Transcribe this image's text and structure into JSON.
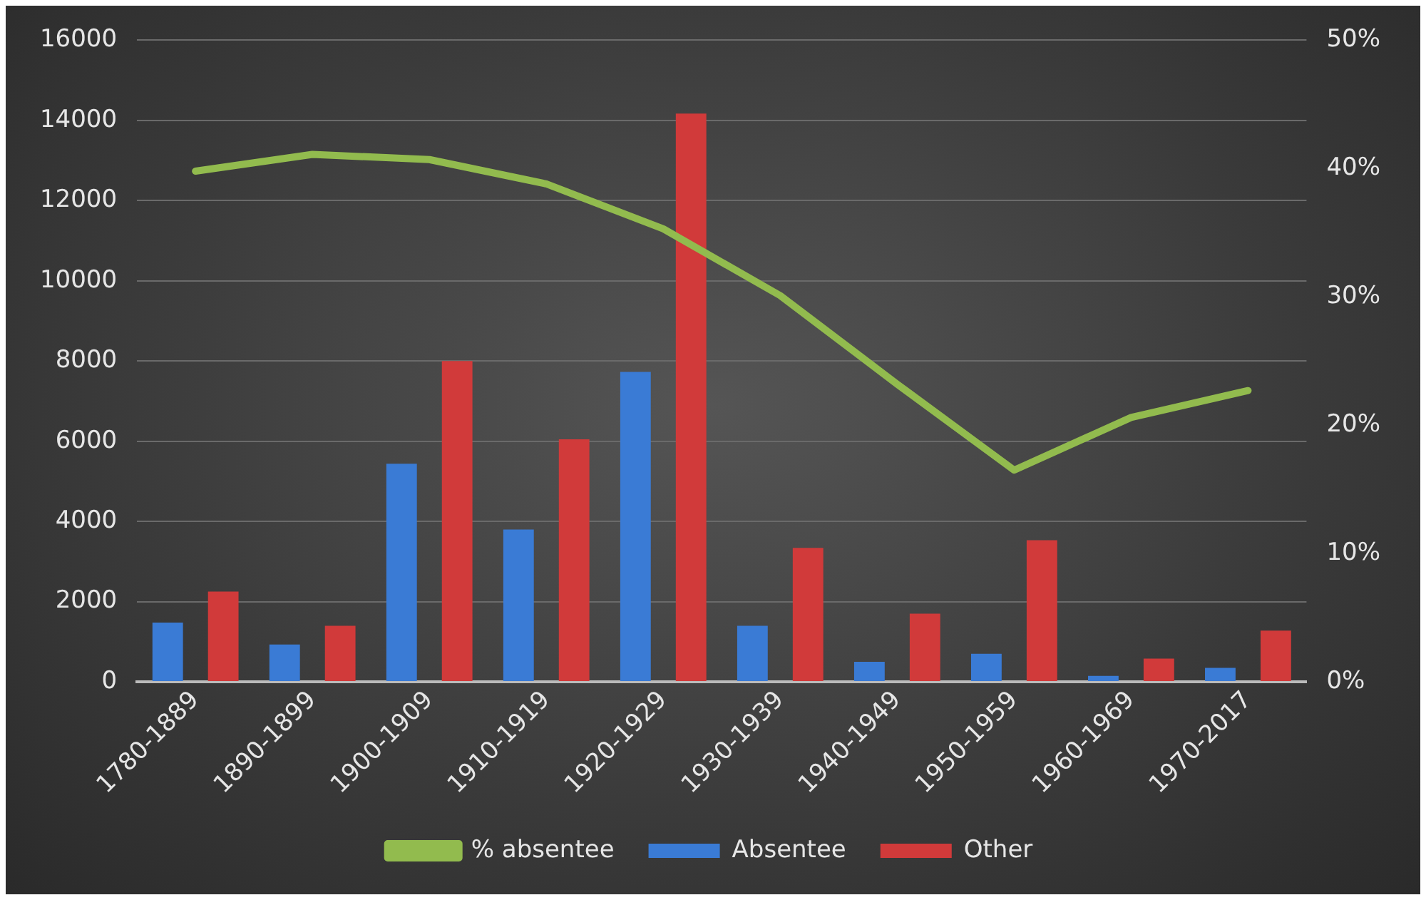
{
  "chart_data": {
    "type": "bar",
    "categories": [
      "1780-1889",
      "1890-1899",
      "1900-1909",
      "1910-1919",
      "1920-1929",
      "1930-1939",
      "1940-1949",
      "1950-1959",
      "1960-1969",
      "1970-2017"
    ],
    "series": [
      {
        "name": "Absentee",
        "color": "#3a7bd5",
        "values": [
          1480,
          930,
          5440,
          3800,
          7730,
          1400,
          500,
          700,
          150,
          350
        ]
      },
      {
        "name": "Other",
        "color": "#d13a3a",
        "values": [
          2250,
          1400,
          8000,
          6050,
          14170,
          3340,
          1700,
          3530,
          580,
          1280
        ]
      },
      {
        "name": "% absentee",
        "type": "line",
        "axis": "y2",
        "color": "#92bb4e",
        "values": [
          39.8,
          41.1,
          40.7,
          38.8,
          35.3,
          30.1,
          23.2,
          16.5,
          20.6,
          22.7
        ]
      }
    ],
    "ylim": [
      0,
      16000
    ],
    "yticks": [
      0,
      2000,
      4000,
      6000,
      8000,
      10000,
      12000,
      14000,
      16000
    ],
    "y2lim": [
      0,
      50
    ],
    "y2ticks": [
      {
        "value": 0,
        "label": "0%"
      },
      {
        "value": 10,
        "label": "10%"
      },
      {
        "value": 20,
        "label": "20%"
      },
      {
        "value": 30,
        "label": "30%"
      },
      {
        "value": 40,
        "label": "40%"
      },
      {
        "value": 50,
        "label": "50%"
      }
    ],
    "grid": "y",
    "legend": "bottom",
    "marker": "none"
  }
}
